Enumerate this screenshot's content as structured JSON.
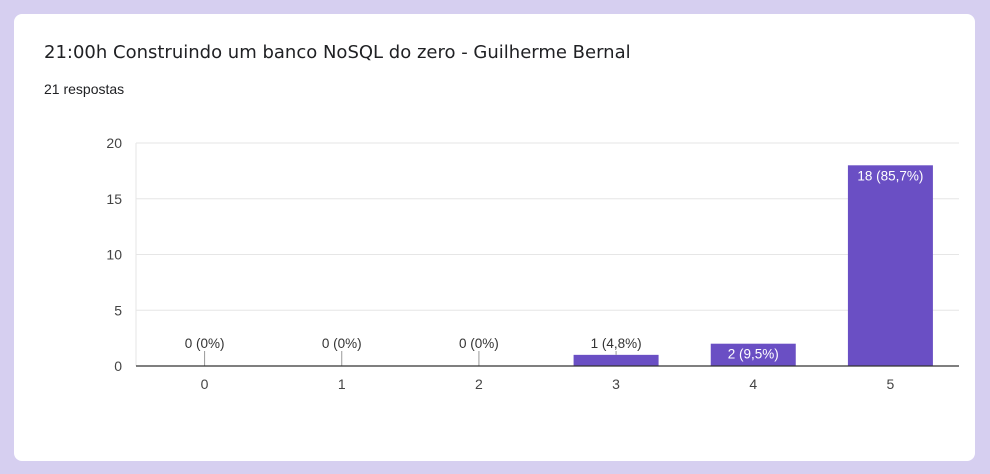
{
  "question": {
    "title": "21:00h Construindo um banco NoSQL do zero - Guilherme Bernal",
    "responses": "21 respostas"
  },
  "colors": {
    "bar": "#6a4fc4",
    "grid": "#e6e6e6",
    "axis": "#333333",
    "background": "#d6cff0"
  },
  "chart_data": {
    "type": "bar",
    "categories": [
      "0",
      "1",
      "2",
      "3",
      "4",
      "5"
    ],
    "values": [
      0,
      0,
      0,
      1,
      2,
      18
    ],
    "data_labels": [
      "0 (0%)",
      "0 (0%)",
      "0 (0%)",
      "1 (4,8%)",
      "2 (9,5%)",
      "18 (85,7%)"
    ],
    "yticks": [
      "0",
      "5",
      "10",
      "15",
      "20"
    ],
    "ylim": [
      0,
      20
    ],
    "grid": true,
    "legend": "none"
  }
}
